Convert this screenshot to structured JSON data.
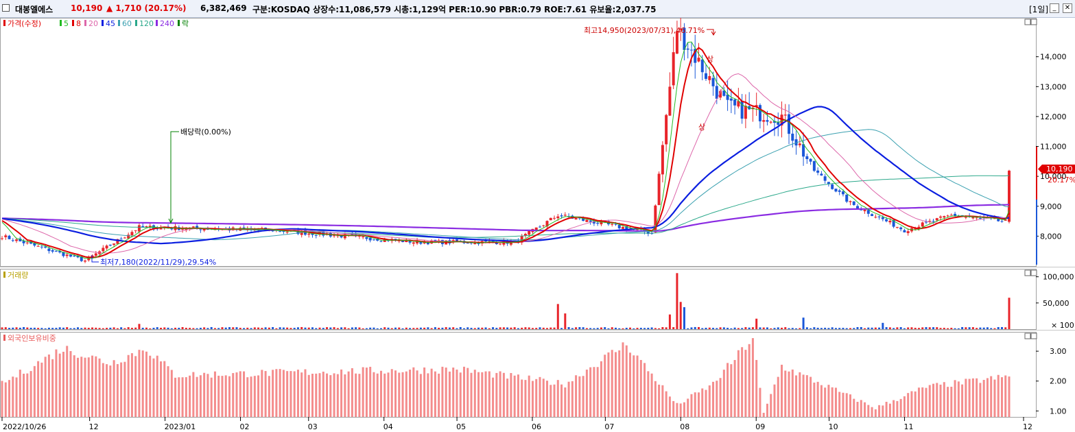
{
  "header": {
    "stock_name": "대봉엘에스",
    "price": "10,190",
    "change": "▲  1,710 (20.17%)",
    "volume": "6,382,469",
    "info": "구분:KOSDAQ 상장수:11,086,579 시총:1,129억 PER:10.90 PBR:0.79 ROE:7.61 유보율:2,037.75",
    "period": "[1일]",
    "btn_min": "_",
    "btn_max": "□",
    "btn_close": "✕"
  },
  "panels": {
    "price_legend": {
      "price": "가격(수정)",
      "ma5": "5",
      "ma8": "8",
      "ma20": "20",
      "ma45": "45",
      "ma60": "60",
      "ma120": "120",
      "ma240": "240",
      "ex": "락"
    },
    "volume_title": "거래량",
    "foreign_title": "외국인보유비중"
  },
  "annotations": {
    "high": "최고14,950(2023/07/31),46.71%",
    "low": "최저7,180(2022/11/29),29.54%",
    "dividend": "배당락(0.00%)",
    "upper_limit": "상",
    "current_price": "10,190",
    "current_pct": "20.17%"
  },
  "colors": {
    "up": "#e8242a",
    "down": "#1a57d8",
    "ma5": "#22bb22",
    "ma8": "#e00000",
    "ma20": "#dd66aa",
    "ma45": "#0a1ee0",
    "ma60": "#3aa0b0",
    "ma120": "#2aa88a",
    "ma240": "#8a2be2",
    "foreign": "#f48c8c"
  },
  "chart_data": [
    {
      "type": "candlestick",
      "title": "",
      "series": [
        "가격(수정)",
        "5",
        "8",
        "20",
        "45",
        "60",
        "120",
        "240"
      ],
      "x_ticks": [
        "2022/10/26",
        "12",
        "2023/01",
        "02",
        "03",
        "04",
        "05",
        "06",
        "07",
        "08",
        "09",
        "10",
        "11",
        "12"
      ],
      "y_ticks": [
        "8,000",
        "9,000",
        "10,000",
        "11,000",
        "12,000",
        "13,000",
        "14,000"
      ],
      "ylim": [
        7000,
        15300
      ],
      "points": [
        [
          "2022-10-26",
          8000
        ],
        [
          "2022-11-29",
          7180
        ],
        [
          "2022-12-21",
          8300
        ],
        [
          "2023-02-15",
          8200
        ],
        [
          "2023-04-14",
          7800
        ],
        [
          "2023-05-25",
          7800
        ],
        [
          "2023-06-12",
          8700
        ],
        [
          "2023-07-20",
          8100
        ],
        [
          "2023-07-31",
          14950
        ],
        [
          "2023-08-20",
          12300
        ],
        [
          "2023-09-12",
          12000
        ],
        [
          "2023-09-25",
          10200
        ],
        [
          "2023-10-10",
          9100
        ],
        [
          "2023-11-01",
          8200
        ],
        [
          "2023-11-20",
          8700
        ],
        [
          "2023-12-13",
          8480
        ],
        [
          "2023-12-14",
          10190
        ]
      ]
    },
    {
      "type": "bar",
      "title": "거래량",
      "unit": "× 100",
      "y_ticks": [
        "50,000",
        "100,000"
      ],
      "ylim": [
        0,
        110000
      ],
      "spikes": [
        [
          "2022-12-21",
          10000
        ],
        [
          "2023-06-12",
          48000
        ],
        [
          "2023-06-14",
          30000
        ],
        [
          "2023-07-28",
          28000
        ],
        [
          "2023-07-31",
          107000
        ],
        [
          "2023-08-01",
          52000
        ],
        [
          "2023-08-03",
          42000
        ],
        [
          "2023-09-01",
          20000
        ],
        [
          "2023-09-20",
          22000
        ],
        [
          "2023-10-23",
          12000
        ],
        [
          "2023-12-14",
          60000
        ]
      ]
    },
    {
      "type": "bar",
      "title": "외국인보유비중",
      "y_ticks": [
        "1.00",
        "2.00",
        "3.00"
      ],
      "ylim": [
        0.8,
        3.6
      ],
      "points": [
        [
          "2022-10-26",
          1.9
        ],
        [
          "2022-11-20",
          3.1
        ],
        [
          "2022-12-10",
          2.6
        ],
        [
          "2022-12-25",
          3.1
        ],
        [
          "2023-01-05",
          2.2
        ],
        [
          "2023-03-01",
          2.3
        ],
        [
          "2023-05-01",
          2.4
        ],
        [
          "2023-06-15",
          1.9
        ],
        [
          "2023-07-10",
          3.25
        ],
        [
          "2023-07-31",
          1.2
        ],
        [
          "2023-08-15",
          1.9
        ],
        [
          "2023-08-31",
          3.45
        ],
        [
          "2023-09-04",
          0.9
        ],
        [
          "2023-09-12",
          2.5
        ],
        [
          "2023-10-20",
          1.1
        ],
        [
          "2023-11-10",
          1.8
        ],
        [
          "2023-12-14",
          2.15
        ]
      ]
    }
  ]
}
